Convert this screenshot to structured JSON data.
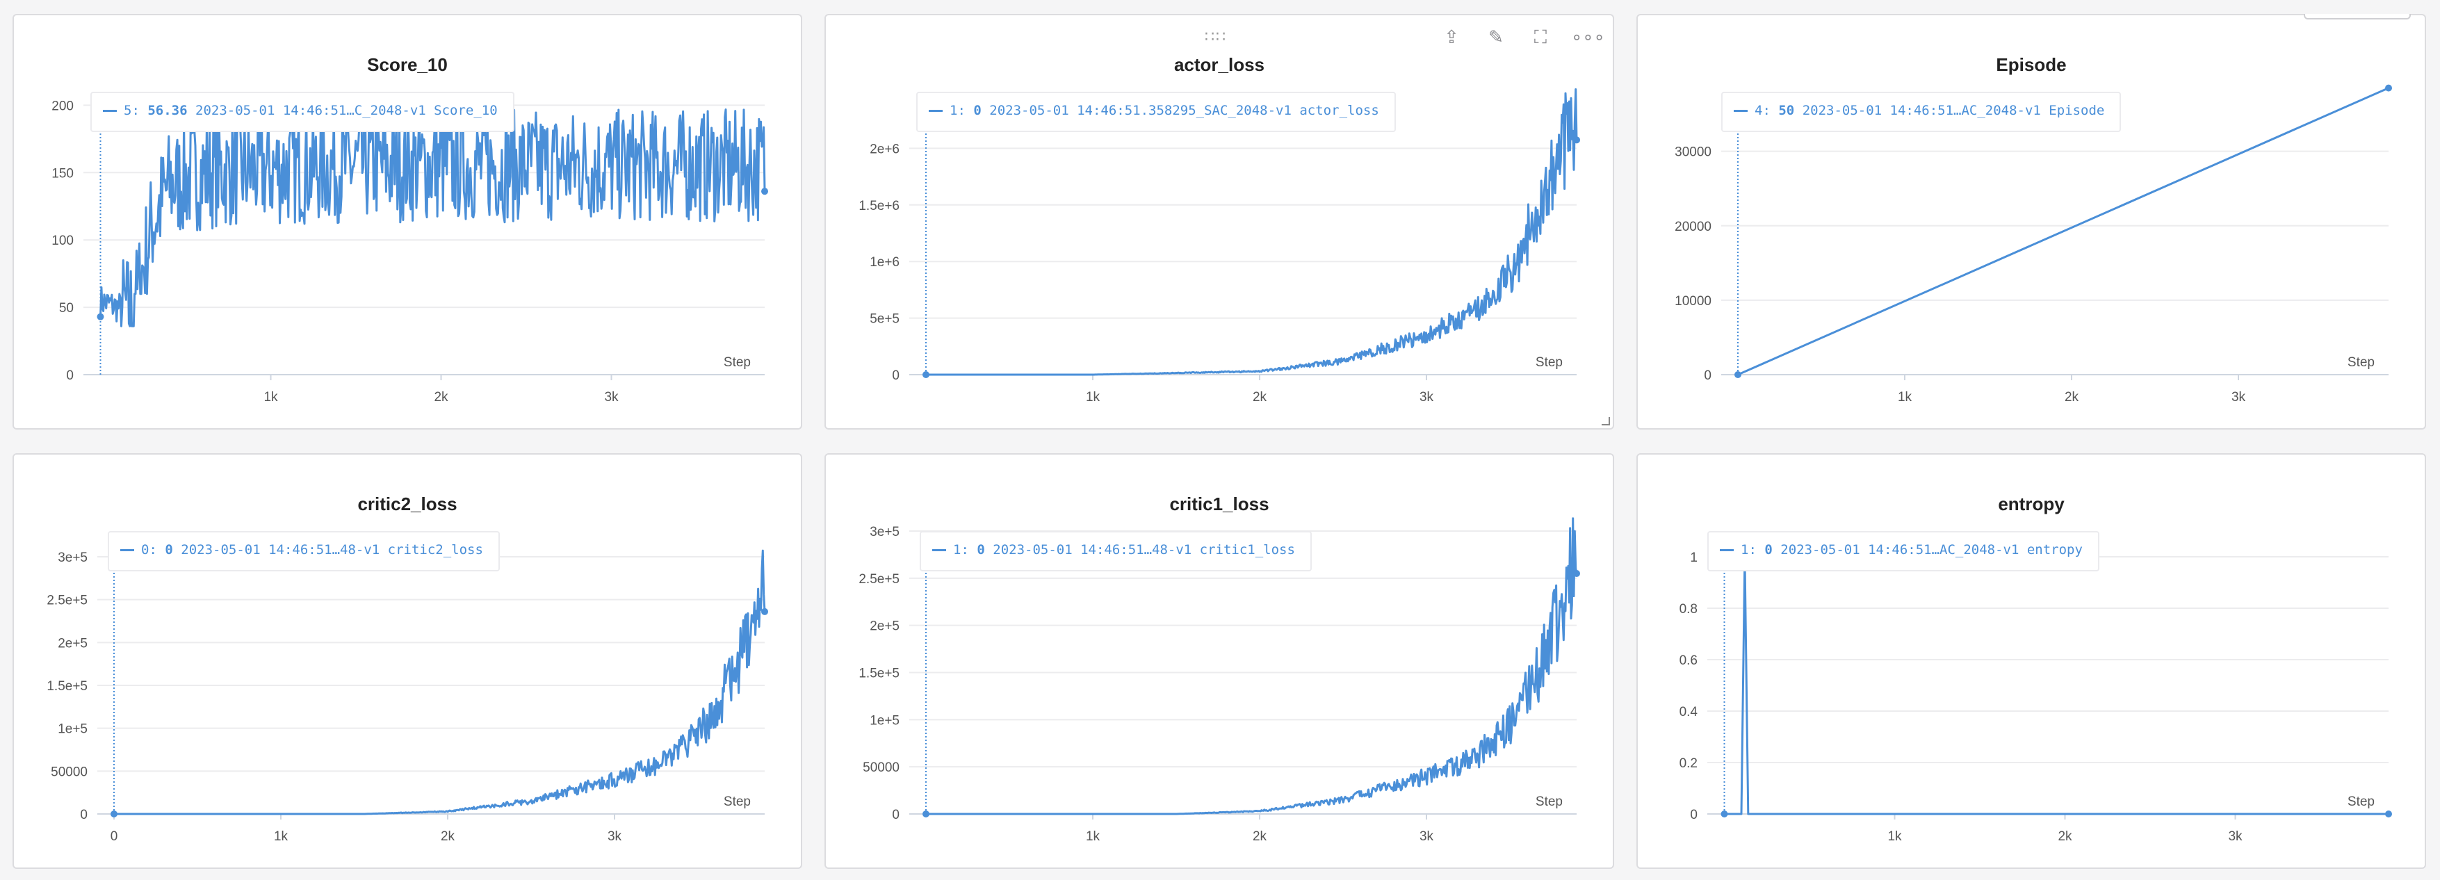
{
  "colors": {
    "line": "#4a8fd8",
    "grid": "#ececee",
    "axis": "#cfd6e0"
  },
  "toolbar_icons": [
    "drag-handle-icon",
    "share-icon",
    "edit-icon",
    "fullscreen-icon",
    "more-icon"
  ],
  "toolbar": {
    "drag": "∷∷",
    "share": "⇪",
    "edit": "✎",
    "fullscreen": "⛶",
    "more": "∘∘∘"
  },
  "chart_data": [
    {
      "type": "line",
      "title": "Score_10",
      "xlabel": "Step",
      "xlim": [
        -100,
        3900
      ],
      "ylim": [
        0,
        210
      ],
      "xticks": [
        "1k",
        "2k",
        "3k"
      ],
      "yticks": [
        "0",
        "50",
        "100",
        "150",
        "200"
      ],
      "legend": {
        "index": "5:",
        "value": "56.36",
        "text": "2023-05-01 14:46:51…C_2048-v1 Score_10"
      },
      "series": [
        {
          "name": "2023-05-01 14:46:51…C_2048-v1 Score_10",
          "generator": "score",
          "x": [
            0,
            100,
            200,
            300,
            400,
            600,
            1000,
            1500,
            2000,
            2500,
            3000,
            3500,
            3900
          ],
          "values": [
            55,
            50,
            48,
            110,
            140,
            150,
            152,
            155,
            155,
            155,
            155,
            155,
            155
          ]
        }
      ]
    },
    {
      "type": "line",
      "title": "actor_loss",
      "xlabel": "Step",
      "xlim": [
        -100,
        3900
      ],
      "ylim": [
        0,
        2500000
      ],
      "xticks": [
        "1k",
        "2k",
        "3k"
      ],
      "yticks": [
        "0",
        "5e+5",
        "1e+6",
        "1.5e+6",
        "2e+6"
      ],
      "legend": {
        "index": "1:",
        "value": "0",
        "text": "2023-05-01 14:46:51.358295_SAC_2048-v1 actor_loss"
      },
      "series": [
        {
          "name": "2023-05-01 14:46:51.358295_SAC_2048-v1 actor_loss",
          "generator": "exp",
          "x": [
            0,
            1000,
            2000,
            2500,
            3000,
            3300,
            3500,
            3600,
            3700,
            3800,
            3850,
            3900
          ],
          "values": [
            0,
            0,
            30000,
            120000,
            350000,
            550000,
            900000,
            1200000,
            1600000,
            1950000,
            2200000,
            2300000
          ]
        }
      ]
    },
    {
      "type": "line",
      "title": "Episode",
      "xlabel": "Step",
      "xlim": [
        -100,
        3900
      ],
      "ylim": [
        0,
        38000
      ],
      "xticks": [
        "1k",
        "2k",
        "3k"
      ],
      "yticks": [
        "0",
        "10000",
        "20000",
        "30000"
      ],
      "legend": {
        "index": "4:",
        "value": "50",
        "text": "2023-05-01 14:46:51…AC_2048-v1 Episode"
      },
      "series": [
        {
          "name": "2023-05-01 14:46:51…AC_2048-v1 Episode",
          "generator": "linear",
          "x": [
            0,
            3900
          ],
          "values": [
            0,
            38500
          ]
        }
      ]
    },
    {
      "type": "line",
      "title": "critic2_loss",
      "xlabel": "Step",
      "xlim": [
        -100,
        3900
      ],
      "ylim": [
        0,
        330000
      ],
      "xticks": [
        "0",
        "1k",
        "2k",
        "3k"
      ],
      "yticks": [
        "0",
        "50000",
        "1e+5",
        "1.5e+5",
        "2e+5",
        "2.5e+5",
        "3e+5"
      ],
      "legend": {
        "index": "0:",
        "value": "0",
        "text": "2023-05-01 14:46:51…48-v1 critic2_loss"
      },
      "series": [
        {
          "name": "2023-05-01 14:46:51…48-v1 critic2_loss",
          "generator": "exp",
          "x": [
            0,
            1500,
            2000,
            2500,
            3000,
            3300,
            3500,
            3600,
            3700,
            3800,
            3850,
            3900
          ],
          "values": [
            0,
            0,
            3000,
            15000,
            40000,
            60000,
            95000,
            120000,
            160000,
            200000,
            230000,
            260000
          ]
        }
      ]
    },
    {
      "type": "line",
      "title": "critic1_loss",
      "xlabel": "Step",
      "xlim": [
        -100,
        3900
      ],
      "ylim": [
        0,
        300000
      ],
      "xticks": [
        "1k",
        "2k",
        "3k"
      ],
      "yticks": [
        "0",
        "50000",
        "1e+5",
        "1.5e+5",
        "2e+5",
        "2.5e+5",
        "3e+5"
      ],
      "legend": {
        "index": "1:",
        "value": "0",
        "text": "2023-05-01 14:46:51…48-v1 critic1_loss"
      },
      "series": [
        {
          "name": "2023-05-01 14:46:51…48-v1 critic1_loss",
          "generator": "exp",
          "x": [
            0,
            1500,
            2000,
            2500,
            3000,
            3300,
            3500,
            3600,
            3700,
            3800,
            3850,
            3900
          ],
          "values": [
            0,
            0,
            3000,
            15000,
            40000,
            60000,
            95000,
            125000,
            165000,
            210000,
            240000,
            280000
          ]
        }
      ]
    },
    {
      "type": "line",
      "title": "entropy",
      "xlabel": "Step",
      "xlim": [
        -100,
        3900
      ],
      "ylim": [
        0,
        1.1
      ],
      "xticks": [
        "1k",
        "2k",
        "3k"
      ],
      "yticks": [
        "0",
        "0.2",
        "0.4",
        "0.6",
        "0.8",
        "1"
      ],
      "legend": {
        "index": "1:",
        "value": "0",
        "text": "2023-05-01 14:46:51…AC_2048-v1 entropy"
      },
      "series": [
        {
          "name": "2023-05-01 14:46:51…AC_2048-v1 entropy",
          "generator": "spike",
          "x": [
            0,
            100,
            120,
            140,
            3900
          ],
          "values": [
            0,
            0,
            1,
            0,
            0
          ]
        }
      ]
    }
  ]
}
